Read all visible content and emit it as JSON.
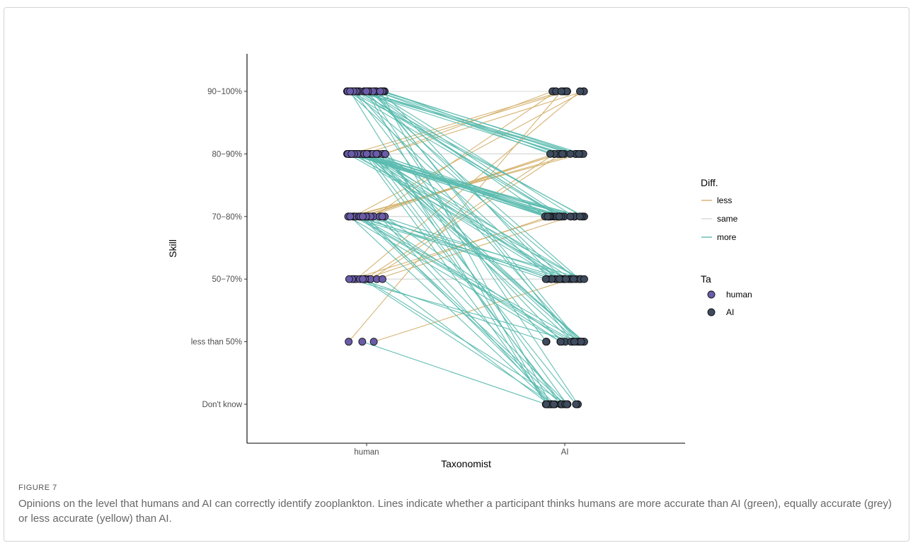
{
  "chart_data": {
    "type": "line",
    "xlabel": "Taxonomist",
    "ylabel": "Skill",
    "x_categories": [
      "human",
      "AI"
    ],
    "y_categories": [
      "Don't know",
      "less than 50%",
      "50-70%",
      "70-80%",
      "80-90%",
      "90-100%"
    ],
    "y_tick_labels": [
      "Don't know",
      "less than 50%",
      "50−70%",
      "70−80%",
      "80−90%",
      "90−100%"
    ],
    "grid": false,
    "legend_position": "right",
    "legends": [
      {
        "title": "Diff.",
        "kind": "line",
        "entries": [
          {
            "label": "less",
            "color": "#d4b06a"
          },
          {
            "label": "same",
            "color": "#d9d9d9"
          },
          {
            "label": "more",
            "color": "#5bbcb0"
          }
        ]
      },
      {
        "title": "Ta",
        "kind": "point",
        "entries": [
          {
            "label": "human",
            "color": "#6a5ca8"
          },
          {
            "label": "AI",
            "color": "#3e4b5e"
          }
        ]
      }
    ],
    "participant_transitions": [
      {
        "human": "90-100%",
        "ai": "90-100%",
        "diff": "same",
        "count": 3
      },
      {
        "human": "90-100%",
        "ai": "80-90%",
        "diff": "more",
        "count": 10
      },
      {
        "human": "90-100%",
        "ai": "70-80%",
        "diff": "more",
        "count": 8
      },
      {
        "human": "90-100%",
        "ai": "50-70%",
        "diff": "more",
        "count": 5
      },
      {
        "human": "90-100%",
        "ai": "less than 50%",
        "diff": "more",
        "count": 4
      },
      {
        "human": "90-100%",
        "ai": "Don't know",
        "diff": "more",
        "count": 4
      },
      {
        "human": "80-90%",
        "ai": "90-100%",
        "diff": "less",
        "count": 4
      },
      {
        "human": "80-90%",
        "ai": "80-90%",
        "diff": "same",
        "count": 3
      },
      {
        "human": "80-90%",
        "ai": "70-80%",
        "diff": "more",
        "count": 15
      },
      {
        "human": "80-90%",
        "ai": "50-70%",
        "diff": "more",
        "count": 8
      },
      {
        "human": "80-90%",
        "ai": "less than 50%",
        "diff": "more",
        "count": 6
      },
      {
        "human": "80-90%",
        "ai": "Don't know",
        "diff": "more",
        "count": 5
      },
      {
        "human": "70-80%",
        "ai": "90-100%",
        "diff": "less",
        "count": 2
      },
      {
        "human": "70-80%",
        "ai": "80-90%",
        "diff": "less",
        "count": 5
      },
      {
        "human": "70-80%",
        "ai": "70-80%",
        "diff": "same",
        "count": 3
      },
      {
        "human": "70-80%",
        "ai": "50-70%",
        "diff": "more",
        "count": 7
      },
      {
        "human": "70-80%",
        "ai": "less than 50%",
        "diff": "more",
        "count": 6
      },
      {
        "human": "70-80%",
        "ai": "Don't know",
        "diff": "more",
        "count": 6
      },
      {
        "human": "50-70%",
        "ai": "90-100%",
        "diff": "less",
        "count": 1
      },
      {
        "human": "50-70%",
        "ai": "80-90%",
        "diff": "less",
        "count": 2
      },
      {
        "human": "50-70%",
        "ai": "70-80%",
        "diff": "less",
        "count": 3
      },
      {
        "human": "50-70%",
        "ai": "50-70%",
        "diff": "same",
        "count": 2
      },
      {
        "human": "50-70%",
        "ai": "less than 50%",
        "diff": "more",
        "count": 2
      },
      {
        "human": "50-70%",
        "ai": "Don't know",
        "diff": "more",
        "count": 3
      },
      {
        "human": "less than 50%",
        "ai": "90-100%",
        "diff": "less",
        "count": 1
      },
      {
        "human": "less than 50%",
        "ai": "50-70%",
        "diff": "less",
        "count": 1
      },
      {
        "human": "less than 50%",
        "ai": "Don't know",
        "diff": "more",
        "count": 1
      }
    ]
  },
  "caption": {
    "label": "FIGURE 7",
    "text": "Opinions on the level that humans and AI can correctly identify zooplankton. Lines indicate whether a participant thinks humans are more accurate than AI (green), equally accurate (grey) or less accurate (yellow) than AI."
  }
}
